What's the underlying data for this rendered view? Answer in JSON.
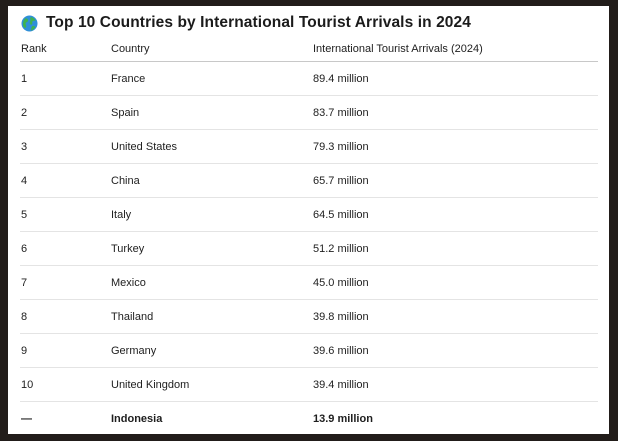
{
  "title": "Top 10 Countries by International Tourist Arrivals in 2024",
  "icons": {
    "title_icon": "globe-icon"
  },
  "columns": {
    "rank": "Rank",
    "country": "Country",
    "arrivals": "International Tourist Arrivals (2024)"
  },
  "rows": [
    {
      "rank": "1",
      "country": "France",
      "arrivals": "89.4 million"
    },
    {
      "rank": "2",
      "country": "Spain",
      "arrivals": "83.7 million"
    },
    {
      "rank": "3",
      "country": "United States",
      "arrivals": "79.3 million"
    },
    {
      "rank": "4",
      "country": "China",
      "arrivals": "65.7 million"
    },
    {
      "rank": "5",
      "country": "Italy",
      "arrivals": "64.5 million"
    },
    {
      "rank": "6",
      "country": "Turkey",
      "arrivals": "51.2 million"
    },
    {
      "rank": "7",
      "country": "Mexico",
      "arrivals": "45.0 million"
    },
    {
      "rank": "8",
      "country": "Thailand",
      "arrivals": "39.8 million"
    },
    {
      "rank": "9",
      "country": "Germany",
      "arrivals": "39.6 million"
    },
    {
      "rank": "10",
      "country": "United Kingdom",
      "arrivals": "39.4 million"
    },
    {
      "rank": "—",
      "country": "Indonesia",
      "arrivals": "13.9 million"
    }
  ],
  "colors": {
    "page_background": "#221d1a",
    "panel_background": "#ffffff",
    "text": "#1e1e1e",
    "row_divider": "#e4e4e4"
  }
}
